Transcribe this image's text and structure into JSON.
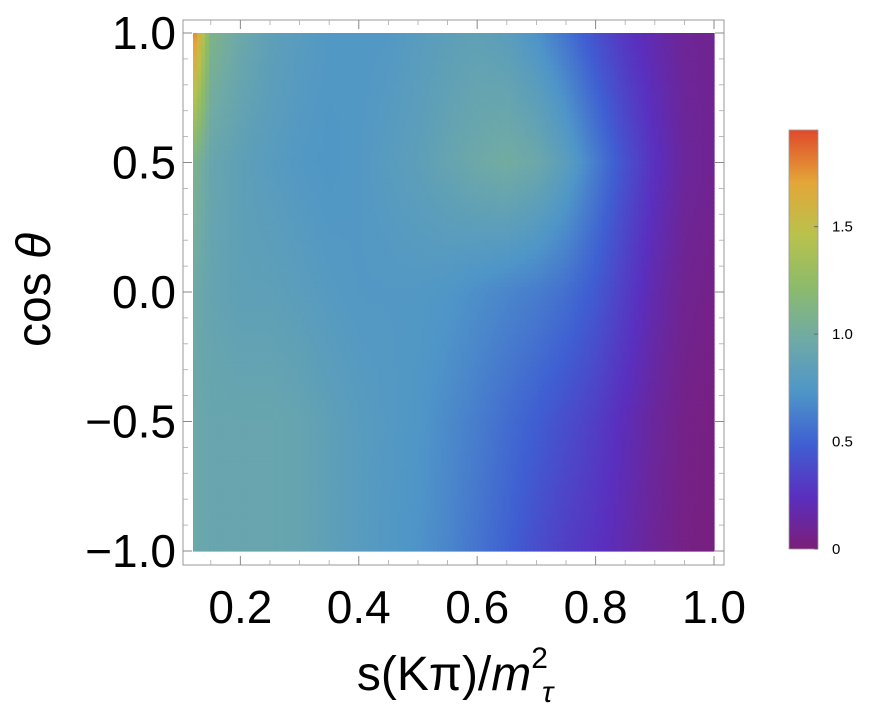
{
  "chart_data": {
    "type": "heatmap",
    "title": "",
    "xlabel": "s(Kπ)/m²τ",
    "xlabel_parts": {
      "base": "s(Kπ)/",
      "var": "m",
      "sup": "2",
      "sub": "τ"
    },
    "ylabel": "cos θ",
    "ylabel_parts": {
      "base": "cos ",
      "var": "θ"
    },
    "xlim": [
      0.12,
      1.0
    ],
    "ylim": [
      -1.0,
      1.0
    ],
    "x_ticks": [
      0.2,
      0.4,
      0.6,
      0.8,
      1.0
    ],
    "x_tick_labels": [
      "0.2",
      "0.4",
      "0.6",
      "0.8",
      "1.0"
    ],
    "y_ticks": [
      -1.0,
      -0.5,
      0.0,
      0.5,
      1.0
    ],
    "y_tick_labels": [
      "−1.0",
      "−0.5",
      "0.0",
      "0.5",
      "1.0"
    ],
    "colorbar": {
      "range": [
        0,
        1.95
      ],
      "ticks": [
        0,
        0.5,
        1.0,
        1.5
      ],
      "tick_labels": [
        "0",
        "0.5",
        "1.0",
        "1.5"
      ],
      "colormap": [
        "#7B1E7A",
        "#5A2FBF",
        "#3F5FD2",
        "#4F96C8",
        "#6FAAA6",
        "#8CBB6B",
        "#B9C24C",
        "#E3A638",
        "#E0492B"
      ]
    },
    "grid": false,
    "legend": "colorbar-right",
    "x": [
      0.12,
      0.15,
      0.2,
      0.25,
      0.3,
      0.35,
      0.4,
      0.45,
      0.5,
      0.55,
      0.6,
      0.65,
      0.7,
      0.75,
      0.8,
      0.85,
      0.9,
      0.95,
      1.0
    ],
    "y": [
      -1.0,
      -0.5,
      0.0,
      0.5,
      1.0
    ],
    "z": [
      [
        0.95,
        0.92,
        0.92,
        0.92,
        0.9,
        0.85,
        0.8,
        0.76,
        0.72,
        0.66,
        0.58,
        0.5,
        0.4,
        0.32,
        0.26,
        0.18,
        0.1,
        0.04,
        0.02
      ],
      [
        0.95,
        0.92,
        0.92,
        0.92,
        0.9,
        0.85,
        0.8,
        0.77,
        0.74,
        0.68,
        0.62,
        0.55,
        0.48,
        0.4,
        0.32,
        0.22,
        0.12,
        0.05,
        0.03
      ],
      [
        0.97,
        0.9,
        0.85,
        0.85,
        0.82,
        0.78,
        0.76,
        0.76,
        0.76,
        0.74,
        0.7,
        0.66,
        0.62,
        0.56,
        0.46,
        0.32,
        0.18,
        0.08,
        0.05
      ],
      [
        1.1,
        0.92,
        0.85,
        0.8,
        0.76,
        0.74,
        0.76,
        0.8,
        0.84,
        0.9,
        0.96,
        1.0,
        0.95,
        0.82,
        0.62,
        0.42,
        0.25,
        0.12,
        0.08
      ],
      [
        1.85,
        1.1,
        0.95,
        0.85,
        0.8,
        0.76,
        0.75,
        0.76,
        0.8,
        0.84,
        0.86,
        0.82,
        0.72,
        0.58,
        0.42,
        0.28,
        0.18,
        0.1,
        0.08
      ]
    ]
  }
}
